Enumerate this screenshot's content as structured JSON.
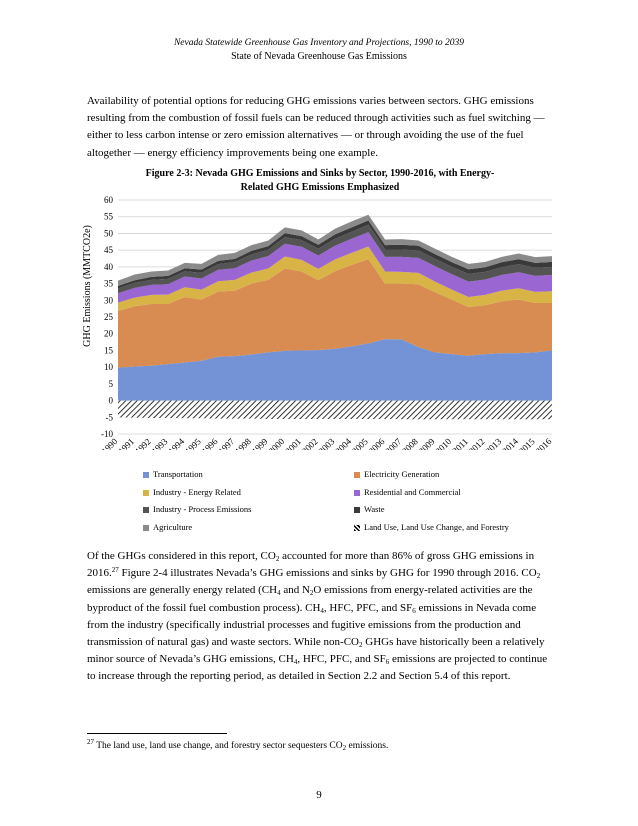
{
  "header": {
    "line1": "Nevada Statewide Greenhouse Gas Inventory and Projections, 1990 to 2039",
    "line2": "State of Nevada Greenhouse Gas Emissions"
  },
  "intro_paragraph": "Availability of potential options for reducing GHG emissions varies between sectors.  GHG emissions resulting from the combustion of fossil fuels can be reduced through activities such as fuel switching — either to less carbon intense or zero emission alternatives — or through avoiding the use of the fuel altogether — energy efficiency improvements being one example.",
  "figure": {
    "title_line1": "Figure 2-3: Nevada GHG Emissions and Sinks by Sector, 1990-2016, with Energy-",
    "title_line2": "Related GHG Emissions Emphasized"
  },
  "chart_data": {
    "type": "area",
    "ylabel": "GHG Emissions (MMTCO2e)",
    "xlabel": "",
    "ylim": [
      -10,
      60
    ],
    "yticks": [
      -10,
      -5,
      0,
      5,
      10,
      15,
      20,
      25,
      30,
      35,
      40,
      45,
      50,
      55,
      60
    ],
    "grid": true,
    "legend_position": "bottom",
    "categories": [
      "1990",
      "1991",
      "1992",
      "1993",
      "1994",
      "1995",
      "1996",
      "1997",
      "1998",
      "1999",
      "2000",
      "2001",
      "2002",
      "2003",
      "2004",
      "2005",
      "2006",
      "2007",
      "2008",
      "2009",
      "2010",
      "2011",
      "2012",
      "2013",
      "2014",
      "2015",
      "2016"
    ],
    "series": [
      {
        "name": "Transportation",
        "color": "#7393d6",
        "stack": "positive",
        "values": [
          9.8,
          10.2,
          10.4,
          10.9,
          11.4,
          11.9,
          13.1,
          13.3,
          13.8,
          14.4,
          14.9,
          15.0,
          15.1,
          15.5,
          16.2,
          17.1,
          18.4,
          18.3,
          16.0,
          14.4,
          13.9,
          13.4,
          13.9,
          14.2,
          14.2,
          14.4,
          15.0
        ]
      },
      {
        "name": "Electricity Generation",
        "color": "#d88c52",
        "stack": "positive",
        "values": [
          17.0,
          18.0,
          18.5,
          18.0,
          19.6,
          18.3,
          19.5,
          19.6,
          21.2,
          21.7,
          24.6,
          23.6,
          20.9,
          23.2,
          24.4,
          25.2,
          16.6,
          16.7,
          18.8,
          18.0,
          16.3,
          14.6,
          14.6,
          15.5,
          16.0,
          14.8,
          14.2
        ]
      },
      {
        "name": "Industry - Energy Related",
        "color": "#d8b447",
        "stack": "positive",
        "values": [
          2.5,
          2.6,
          2.7,
          2.8,
          2.9,
          3.0,
          3.1,
          3.2,
          3.3,
          3.4,
          3.6,
          3.5,
          3.4,
          3.5,
          3.6,
          3.8,
          3.6,
          3.5,
          3.4,
          3.2,
          3.0,
          3.0,
          3.1,
          3.2,
          3.4,
          3.3,
          3.5
        ]
      },
      {
        "name": "Residential and Commercial",
        "color": "#9a67d2",
        "stack": "positive",
        "values": [
          2.8,
          2.9,
          3.0,
          3.1,
          3.2,
          3.3,
          3.4,
          3.5,
          3.6,
          3.7,
          3.8,
          3.9,
          4.0,
          4.1,
          4.2,
          4.3,
          4.4,
          4.5,
          4.5,
          4.6,
          4.6,
          4.6,
          4.6,
          4.7,
          4.8,
          4.8,
          4.9
        ]
      },
      {
        "name": "Industry - Process Emissions",
        "color": "#545454",
        "stack": "positive",
        "values": [
          1.4,
          1.5,
          1.5,
          1.6,
          1.6,
          1.7,
          1.7,
          1.8,
          1.8,
          1.9,
          2.0,
          2.0,
          2.0,
          2.1,
          2.1,
          2.2,
          2.2,
          2.2,
          2.2,
          2.2,
          2.2,
          2.3,
          2.3,
          2.3,
          2.4,
          2.4,
          2.4
        ]
      },
      {
        "name": "Waste",
        "color": "#3a3a3a",
        "stack": "positive",
        "values": [
          0.8,
          0.8,
          0.9,
          0.9,
          0.9,
          1.0,
          1.0,
          1.0,
          1.1,
          1.1,
          1.2,
          1.2,
          1.2,
          1.3,
          1.3,
          1.3,
          1.3,
          1.4,
          1.4,
          1.4,
          1.4,
          1.4,
          1.4,
          1.5,
          1.5,
          1.5,
          1.5
        ]
      },
      {
        "name": "Agriculture",
        "color": "#8a8a8a",
        "stack": "positive",
        "values": [
          1.6,
          1.7,
          1.6,
          1.6,
          1.6,
          1.7,
          1.8,
          1.8,
          1.7,
          1.7,
          1.7,
          1.7,
          1.6,
          1.7,
          1.8,
          1.7,
          1.7,
          1.7,
          1.6,
          1.6,
          1.6,
          1.6,
          1.6,
          1.6,
          1.7,
          1.7,
          1.7
        ]
      },
      {
        "name": "Land Use, Land Use Change, and Forestry",
        "color": "#000000",
        "pattern": "hatch",
        "stack": "negative",
        "values": [
          -5.0,
          -5.1,
          -5.2,
          -5.2,
          -5.3,
          -5.3,
          -5.4,
          -5.4,
          -5.4,
          -5.5,
          -5.5,
          -5.5,
          -5.5,
          -5.5,
          -5.5,
          -5.5,
          -5.5,
          -5.6,
          -5.6,
          -5.6,
          -5.6,
          -5.6,
          -5.6,
          -5.6,
          -5.6,
          -5.6,
          -5.6
        ]
      }
    ]
  },
  "body_paragraph_runs": [
    {
      "t": "Of the GHGs considered in this report, CO"
    },
    {
      "t": "2",
      "s": "sub"
    },
    {
      "t": " accounted for more than 86% of gross GHG emissions in 2016."
    },
    {
      "t": "27",
      "s": "sup"
    },
    {
      "t": "  Figure 2-4 illustrates Nevada’s GHG emissions and sinks by GHG for 1990 through 2016.  CO"
    },
    {
      "t": "2",
      "s": "sub"
    },
    {
      "t": " emissions are generally energy related (CH"
    },
    {
      "t": "4",
      "s": "sub"
    },
    {
      "t": " and N"
    },
    {
      "t": "2",
      "s": "sub"
    },
    {
      "t": "O emissions from energy-related activities are the byproduct of the fossil fuel combustion process).  CH"
    },
    {
      "t": "4",
      "s": "sub"
    },
    {
      "t": ", HFC, PFC, and SF"
    },
    {
      "t": "6",
      "s": "sub"
    },
    {
      "t": " emissions in Nevada come from the industry (specifically industrial processes and fugitive emissions from the production and transmission of natural gas) and waste sectors.  While non-CO"
    },
    {
      "t": "2",
      "s": "sub"
    },
    {
      "t": " GHGs have historically been a relatively minor source of Nevada’s GHG emissions, CH"
    },
    {
      "t": "4",
      "s": "sub"
    },
    {
      "t": ", HFC, PFC, and SF"
    },
    {
      "t": "6",
      "s": "sub"
    },
    {
      "t": " emissions are projected to continue to increase through the reporting period, as detailed in Section 2.2 and Section 5.4 of this report."
    }
  ],
  "footnote_runs": [
    {
      "t": "27",
      "s": "sup"
    },
    {
      "t": " The land use, land use change, and forestry sector sequesters CO"
    },
    {
      "t": "2",
      "s": "sub"
    },
    {
      "t": " emissions."
    }
  ],
  "page_number": "9"
}
